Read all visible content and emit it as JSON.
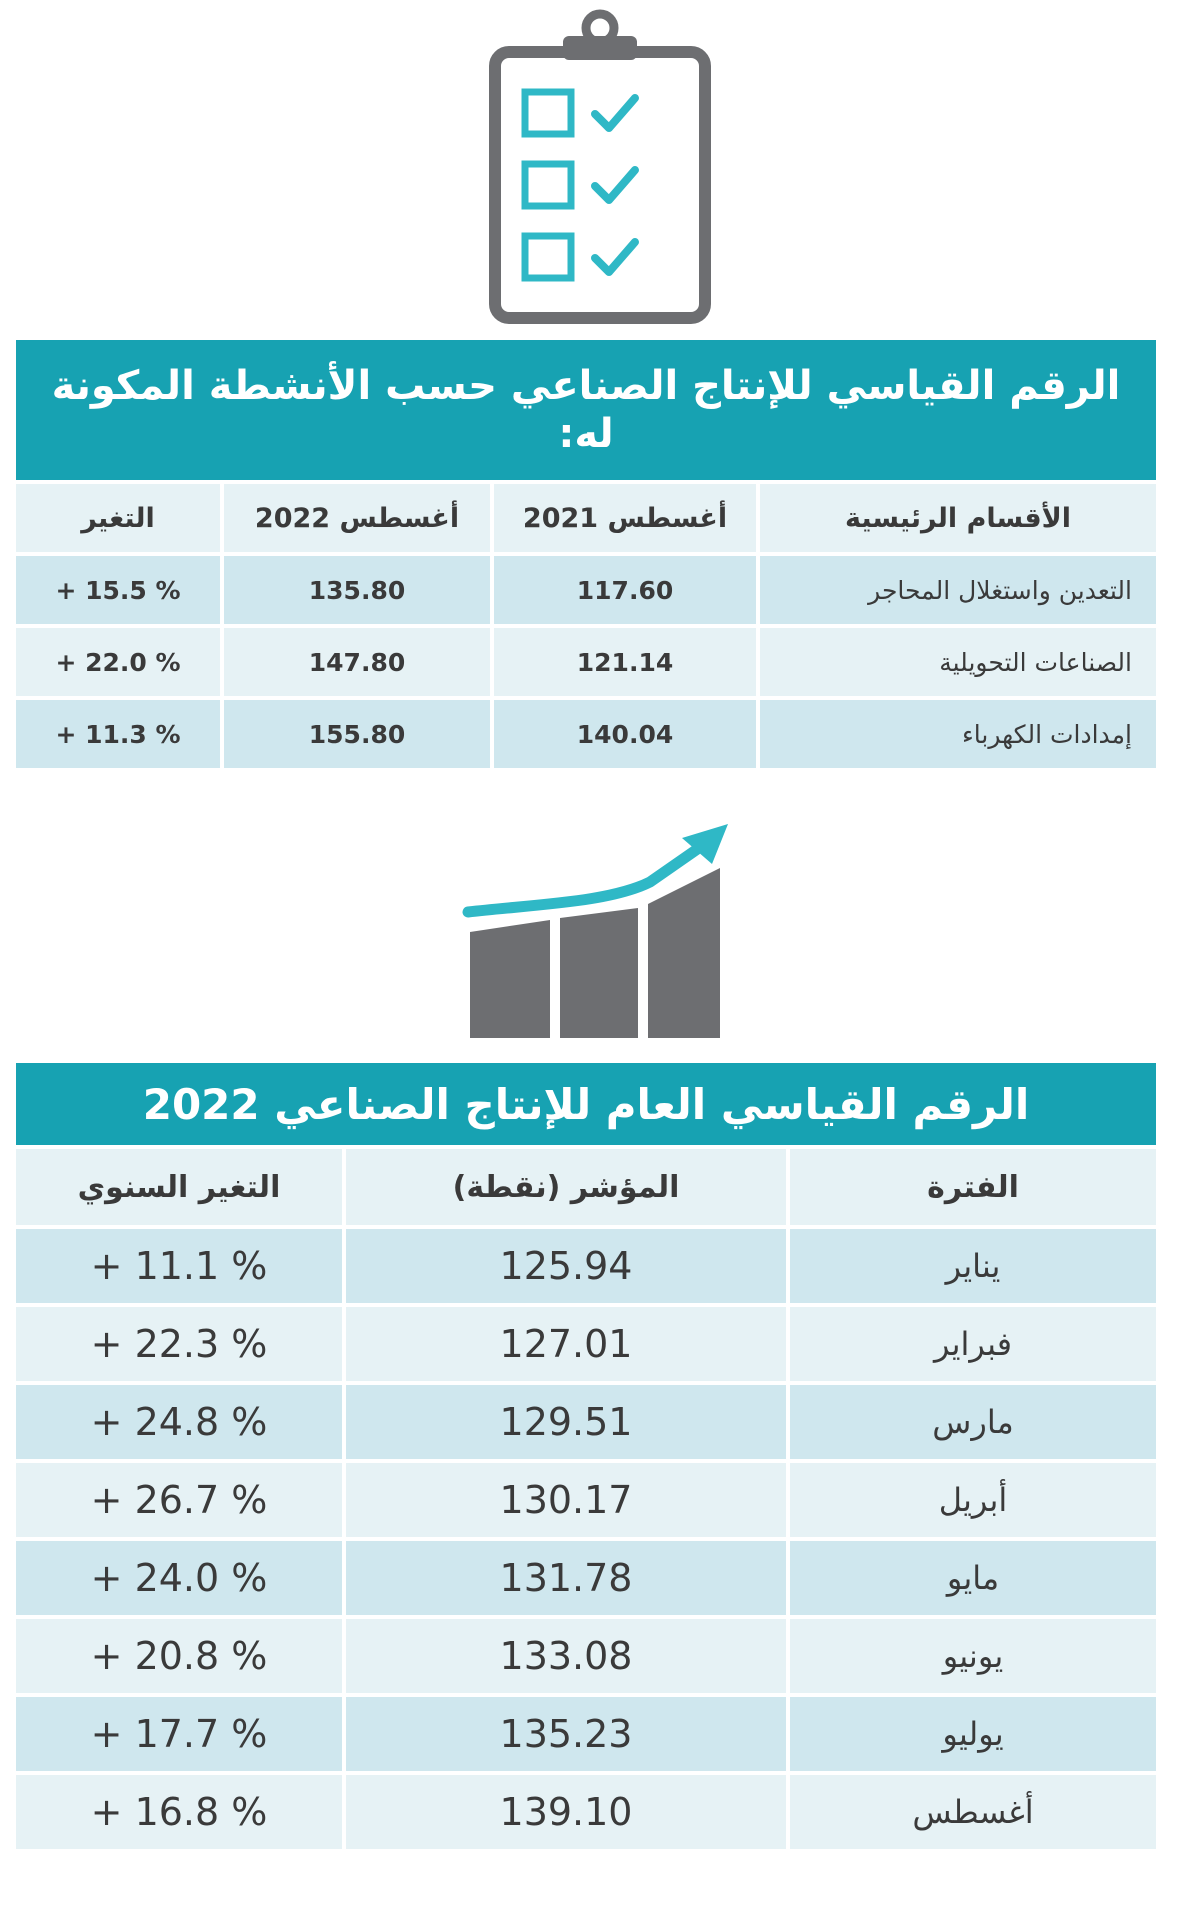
{
  "table1": {
    "title": "الرقم القياسي للإنتاج الصناعي حسب الأنشطة المكونة له:",
    "headers": [
      "الأقسام الرئيسية",
      "أغسطس 2021",
      "أغسطس 2022",
      "التغير"
    ],
    "rows": [
      [
        "التعدين واستغلال المحاجر",
        "117.60",
        "135.80",
        "% 15.5 +"
      ],
      [
        "الصناعات التحويلية",
        "121.14",
        "147.80",
        "% 22.0 +"
      ],
      [
        "إمدادات الكهرباء",
        "140.04",
        "155.80",
        "% 11.3 +"
      ]
    ]
  },
  "table2": {
    "title": "الرقم القياسي العام للإنتاج الصناعي 2022",
    "headers": [
      "الفترة",
      "المؤشر (نقطة)",
      "التغير السنوي"
    ],
    "rows": [
      [
        "يناير",
        "125.94",
        "% 11.1 +"
      ],
      [
        "فبراير",
        "127.01",
        "% 22.3 +"
      ],
      [
        "مارس",
        "129.51",
        "% 24.8 +"
      ],
      [
        "أبريل",
        "130.17",
        "% 26.7 +"
      ],
      [
        "مايو",
        "131.78",
        "% 24.0 +"
      ],
      [
        "يونيو",
        "133.08",
        "% 20.8 +"
      ],
      [
        "يوليو",
        "135.23",
        "% 17.7 +"
      ],
      [
        "أغسطس",
        "139.10",
        "% 16.8 +"
      ]
    ]
  },
  "chart_data": [
    {
      "type": "table",
      "title": "الرقم القياسي للإنتاج الصناعي حسب الأنشطة المكونة له:",
      "columns": [
        "الأقسام الرئيسية",
        "أغسطس 2021",
        "أغسطس 2022",
        "التغير"
      ],
      "categories": [
        "التعدين واستغلال المحاجر",
        "الصناعات التحويلية",
        "إمدادات الكهرباء"
      ],
      "series": [
        {
          "name": "أغسطس 2021",
          "values": [
            117.6,
            121.14,
            140.04
          ]
        },
        {
          "name": "أغسطس 2022",
          "values": [
            135.8,
            147.8,
            155.8
          ]
        },
        {
          "name": "التغير",
          "values": [
            15.5,
            22.0,
            11.3
          ]
        }
      ]
    },
    {
      "type": "table",
      "title": "الرقم القياسي العام للإنتاج الصناعي 2022",
      "columns": [
        "الفترة",
        "المؤشر (نقطة)",
        "التغير السنوي"
      ],
      "categories": [
        "يناير",
        "فبراير",
        "مارس",
        "أبريل",
        "مايو",
        "يونيو",
        "يوليو",
        "أغسطس"
      ],
      "series": [
        {
          "name": "المؤشر (نقطة)",
          "values": [
            125.94,
            127.01,
            129.51,
            130.17,
            131.78,
            133.08,
            135.23,
            139.1
          ]
        },
        {
          "name": "التغير السنوي",
          "values": [
            11.1,
            22.3,
            24.8,
            26.7,
            24.0,
            20.8,
            17.7,
            16.8
          ]
        }
      ]
    }
  ],
  "colors": {
    "accent": "#17a2b2",
    "icon_gray": "#6d6e71",
    "row_light": "#e6f2f5",
    "row_dark": "#cfe7ee"
  },
  "icons": {
    "top": "clipboard-checklist-icon",
    "middle": "growth-bar-chart-icon"
  }
}
